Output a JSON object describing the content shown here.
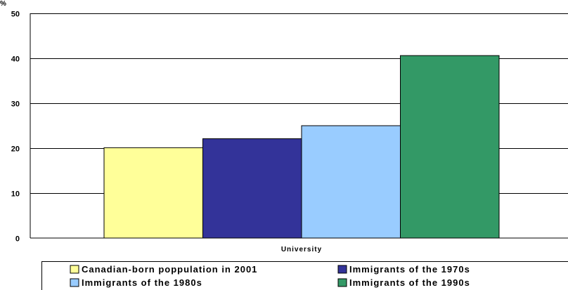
{
  "chart_data": {
    "type": "bar",
    "ylabel": "%",
    "categories": [
      "University"
    ],
    "ylim": [
      0,
      50
    ],
    "yticks": [
      0,
      10,
      20,
      30,
      40,
      50
    ],
    "grid": true,
    "legend_position": "bottom",
    "series": [
      {
        "name": "Canadian-born poppulation in 2001",
        "values": [
          20.1
        ],
        "color": "#FFFF99"
      },
      {
        "name": "Immigrants of the 1970s",
        "values": [
          22.1
        ],
        "color": "#333399"
      },
      {
        "name": "Immigrants of the 1980s",
        "values": [
          25.0
        ],
        "color": "#99CCFF"
      },
      {
        "name": "Immigrants of the 1990s",
        "values": [
          40.6
        ],
        "color": "#339966"
      }
    ]
  }
}
